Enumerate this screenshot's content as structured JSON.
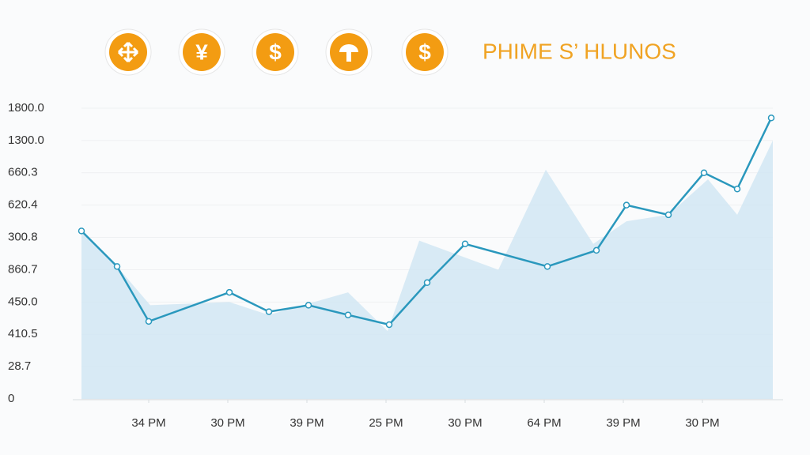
{
  "header": {
    "title": "PHIME S’ HLUNOS",
    "icon_symbols": [
      "¥",
      "$",
      "$"
    ]
  },
  "chart_data": {
    "type": "line",
    "xlim": [
      -0.85,
      7.89
    ],
    "xticks": [
      {
        "value": 0,
        "label": "34 PM"
      },
      {
        "value": 1,
        "label": "30 PM"
      },
      {
        "value": 2,
        "label": "39 PM"
      },
      {
        "value": 3,
        "label": "25 PM"
      },
      {
        "value": 4,
        "label": "30 PM"
      },
      {
        "value": 5,
        "label": "64 PM"
      },
      {
        "value": 6,
        "label": "39 PM"
      },
      {
        "value": 7,
        "label": "30 PM"
      }
    ],
    "ylim": [
      0,
      9
    ],
    "yticks": [
      0,
      {
        "value": 1,
        "label": "28.7"
      },
      {
        "value": 2,
        "label": "410.5"
      },
      {
        "value": 3,
        "label": "450.0"
      },
      {
        "value": 4,
        "label": "860.7"
      },
      {
        "value": 5,
        "label": "300.8"
      },
      {
        "value": 6,
        "label": "620.4"
      },
      {
        "value": 7,
        "label": "660.3"
      },
      {
        "value": 8,
        "label": "1300.0"
      },
      {
        "value": 9,
        "label": "1800.0"
      }
    ],
    "grid": true,
    "series": [
      {
        "kind": "area",
        "color": "#cfe6f2",
        "x": [
          -0.85,
          -0.4,
          0.02,
          1.02,
          1.52,
          2.52,
          3.02,
          3.42,
          4.42,
          5.02,
          5.62,
          6.04,
          6.57,
          7.07,
          7.44,
          7.89
        ],
        "values": [
          5.2,
          4.1,
          2.9,
          3.0,
          2.6,
          3.3,
          2.1,
          4.9,
          4.0,
          7.1,
          4.8,
          5.5,
          5.7,
          6.8,
          5.7,
          8.0
        ]
      },
      {
        "kind": "line",
        "color": "#2a98bd",
        "x": [
          -0.85,
          -0.4,
          0,
          1.02,
          1.52,
          2.02,
          2.52,
          3.04,
          3.52,
          4.0,
          5.04,
          5.66,
          6.04,
          6.57,
          7.02,
          7.44,
          7.87
        ],
        "values": [
          5.2,
          4.1,
          2.4,
          3.3,
          2.7,
          2.9,
          2.6,
          2.3,
          3.6,
          4.8,
          4.1,
          4.6,
          6.0,
          5.7,
          7.0,
          6.5,
          8.7
        ]
      }
    ]
  }
}
